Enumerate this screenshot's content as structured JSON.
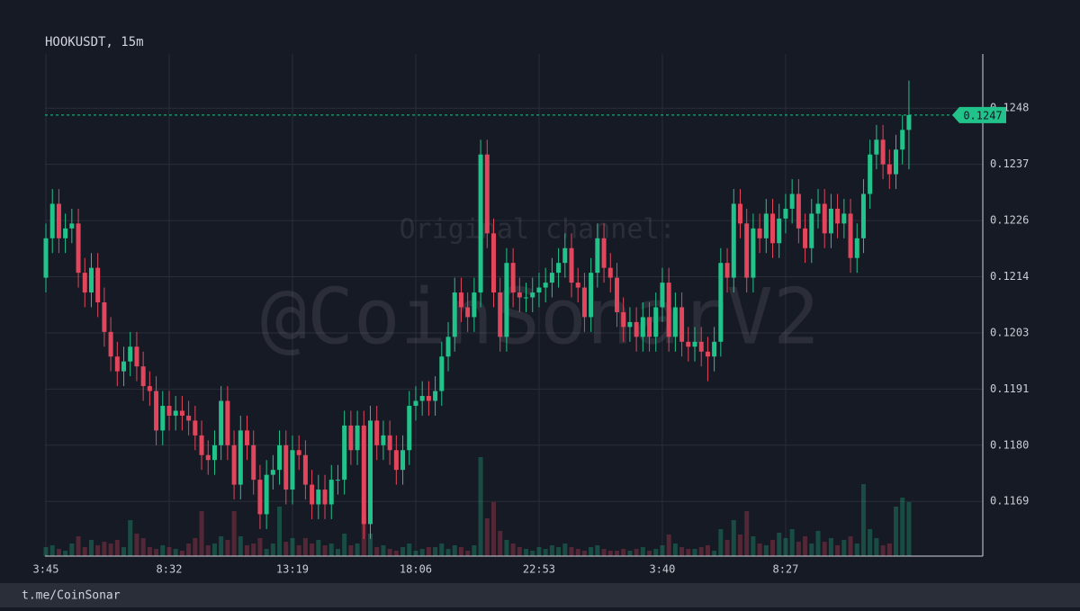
{
  "chart_data": {
    "type": "candlestick",
    "title": "HOOKUSDT, 15m",
    "categories": [
      "3:45",
      null,
      null,
      null,
      null,
      null,
      null,
      null,
      null,
      null,
      null,
      null,
      null,
      null,
      null,
      null,
      null,
      null,
      null,
      "8:32",
      null,
      null,
      null,
      null,
      null,
      null,
      null,
      null,
      null,
      null,
      null,
      null,
      null,
      null,
      null,
      null,
      null,
      null,
      "13:19",
      null,
      null,
      null,
      null,
      null,
      null,
      null,
      null,
      null,
      null,
      null,
      null,
      null,
      null,
      null,
      null,
      null,
      null,
      "18:06",
      null,
      null,
      null,
      null,
      null,
      null,
      null,
      null,
      null,
      null,
      null,
      null,
      null,
      null,
      null,
      null,
      null,
      null,
      "22:53",
      null,
      null,
      null,
      null,
      null,
      null,
      null,
      null,
      null,
      null,
      null,
      null,
      null,
      null,
      null,
      null,
      null,
      null,
      "3:40",
      null,
      null,
      null,
      null,
      null,
      null,
      null,
      null,
      null,
      null,
      null,
      null,
      null,
      null,
      null,
      null,
      null,
      null,
      "8:27",
      null,
      null,
      null,
      null,
      null,
      null,
      null,
      null,
      null,
      null,
      null,
      null,
      null,
      null,
      null,
      null,
      null,
      null,
      null
    ],
    "open": [
      0.1214,
      0.1222,
      0.1229,
      0.1222,
      0.1224,
      0.1225,
      0.1215,
      0.1211,
      0.1216,
      0.1209,
      0.1203,
      0.1198,
      0.1195,
      0.1197,
      0.12,
      0.1196,
      0.1192,
      0.1191,
      0.1183,
      0.1188,
      0.1186,
      0.1187,
      0.1186,
      0.1185,
      0.1182,
      0.1178,
      0.1177,
      0.118,
      0.1189,
      0.118,
      0.1172,
      0.1183,
      0.118,
      0.1173,
      0.1166,
      0.1174,
      0.1175,
      0.118,
      0.1171,
      0.1179,
      0.1178,
      0.1172,
      0.1168,
      0.1171,
      0.1168,
      0.1173,
      0.1173,
      0.1184,
      0.1179,
      0.1184,
      0.1164,
      0.1185,
      0.118,
      0.1182,
      0.1179,
      0.1175,
      0.1179,
      0.1188,
      0.1189,
      0.119,
      0.1189,
      0.1191,
      0.1198,
      0.1202,
      0.1211,
      0.1208,
      0.1206,
      0.1211,
      0.1239,
      0.1223,
      0.1211,
      0.1202,
      0.1217,
      0.1211,
      0.121,
      0.121,
      0.1211,
      0.1212,
      0.1213,
      0.1215,
      0.1217,
      0.122,
      0.1213,
      0.1212,
      0.1206,
      0.1215,
      0.1222,
      0.1216,
      0.1214,
      0.1207,
      0.1204,
      0.1205,
      0.1202,
      0.1206,
      0.1202,
      0.1208,
      0.1213,
      0.1202,
      0.1208,
      0.1201,
      0.12,
      0.1201,
      0.1199,
      0.1198,
      0.1201,
      0.1217,
      0.1214,
      0.1229,
      0.1225,
      0.1214,
      0.1224,
      0.1222,
      0.1227,
      0.1221,
      0.1226,
      0.1228,
      0.1231,
      0.1224,
      0.122,
      0.1227,
      0.1229,
      0.1223,
      0.1228,
      0.1225,
      0.1227,
      0.1218,
      0.1222,
      0.1231,
      0.1239,
      0.1242,
      0.1237,
      0.1235,
      0.124,
      0.1244
    ],
    "high": [
      0.1225,
      0.1232,
      0.1232,
      0.1227,
      0.1228,
      0.1228,
      0.1218,
      0.1219,
      0.1219,
      0.1212,
      0.1206,
      0.1201,
      0.12,
      0.1203,
      0.1203,
      0.1199,
      0.1195,
      0.1194,
      0.1191,
      0.1191,
      0.119,
      0.119,
      0.1189,
      0.1188,
      0.1185,
      0.1181,
      0.1183,
      0.1192,
      0.1192,
      0.1183,
      0.1186,
      0.1186,
      0.1183,
      0.1176,
      0.1177,
      0.1178,
      0.1183,
      0.1183,
      0.1182,
      0.1182,
      0.1181,
      0.1175,
      0.1174,
      0.1174,
      0.1176,
      0.1176,
      0.1187,
      0.1187,
      0.1187,
      0.1187,
      0.1188,
      0.1188,
      0.1185,
      0.1185,
      0.1182,
      0.1182,
      0.1191,
      0.1192,
      0.1193,
      0.1193,
      0.1194,
      0.1201,
      0.1205,
      0.1214,
      0.1214,
      0.1211,
      0.1214,
      0.1242,
      0.1242,
      0.1226,
      0.1214,
      0.122,
      0.122,
      0.1214,
      0.1213,
      0.1214,
      0.1215,
      0.1216,
      0.1218,
      0.122,
      0.1223,
      0.1223,
      0.1216,
      0.1215,
      0.1218,
      0.1225,
      0.1225,
      0.1219,
      0.1217,
      0.121,
      0.1208,
      0.1208,
      0.1209,
      0.1209,
      0.1211,
      0.1216,
      0.1216,
      0.1211,
      0.1211,
      0.1204,
      0.1204,
      0.1204,
      0.1202,
      0.1204,
      0.122,
      0.122,
      0.1232,
      0.1232,
      0.1228,
      0.1227,
      0.1227,
      0.123,
      0.123,
      0.1229,
      0.1231,
      0.1234,
      0.1234,
      0.1227,
      0.123,
      0.1232,
      0.1232,
      0.1231,
      0.1231,
      0.123,
      0.123,
      0.1225,
      0.1234,
      0.1242,
      0.1245,
      0.1245,
      0.124,
      0.1243,
      0.1247,
      0.1254
    ],
    "low": [
      0.1211,
      0.1219,
      0.1219,
      0.1219,
      0.1221,
      0.1212,
      0.1208,
      0.1208,
      0.1206,
      0.12,
      0.1195,
      0.1192,
      0.1192,
      0.1194,
      0.1193,
      0.1189,
      0.1188,
      0.118,
      0.118,
      0.1183,
      0.1183,
      0.1183,
      0.1182,
      0.1179,
      0.1175,
      0.1174,
      0.1174,
      0.1177,
      0.1177,
      0.1169,
      0.1169,
      0.1177,
      0.117,
      0.1163,
      0.1163,
      0.1171,
      0.1172,
      0.1168,
      0.1168,
      0.1175,
      0.1169,
      0.1165,
      0.1165,
      0.1165,
      0.1165,
      0.117,
      0.117,
      0.1176,
      0.1176,
      0.1161,
      0.1161,
      0.1177,
      0.1177,
      0.1176,
      0.1172,
      0.1172,
      0.1176,
      0.1185,
      0.1186,
      0.1186,
      0.1186,
      0.1188,
      0.1195,
      0.1199,
      0.1205,
      0.1203,
      0.1203,
      0.1208,
      0.122,
      0.1208,
      0.1199,
      0.1199,
      0.1208,
      0.1207,
      0.1207,
      0.1207,
      0.1208,
      0.1209,
      0.121,
      0.1212,
      0.1214,
      0.121,
      0.1209,
      0.1203,
      0.1203,
      0.1212,
      0.1213,
      0.1211,
      0.1204,
      0.1201,
      0.1201,
      0.1199,
      0.1199,
      0.1199,
      0.1199,
      0.1205,
      0.1199,
      0.1199,
      0.1198,
      0.1197,
      0.1197,
      0.1196,
      0.1193,
      0.1195,
      0.1198,
      0.1211,
      0.1211,
      0.1222,
      0.1211,
      0.1211,
      0.1219,
      0.1219,
      0.1218,
      0.1218,
      0.1223,
      0.1225,
      0.1221,
      0.1217,
      0.1217,
      0.1224,
      0.122,
      0.122,
      0.1222,
      0.1222,
      0.1215,
      0.1215,
      0.1219,
      0.1228,
      0.1236,
      0.1234,
      0.1232,
      0.1232,
      0.1237,
      0.1236
    ],
    "close": [
      0.1222,
      0.1229,
      0.1222,
      0.1224,
      0.1225,
      0.1215,
      0.1211,
      0.1216,
      0.1209,
      0.1203,
      0.1198,
      0.1195,
      0.1197,
      0.12,
      0.1196,
      0.1192,
      0.1191,
      0.1183,
      0.1188,
      0.1186,
      0.1187,
      0.1186,
      0.1185,
      0.1182,
      0.1178,
      0.1177,
      0.118,
      0.1189,
      0.118,
      0.1172,
      0.1183,
      0.118,
      0.1173,
      0.1166,
      0.1174,
      0.1175,
      0.118,
      0.1171,
      0.1179,
      0.1178,
      0.1172,
      0.1168,
      0.1171,
      0.1168,
      0.1173,
      0.1173,
      0.1184,
      0.1179,
      0.1184,
      0.1164,
      0.1185,
      0.118,
      0.1182,
      0.1179,
      0.1175,
      0.1179,
      0.1188,
      0.1189,
      0.119,
      0.1189,
      0.1191,
      0.1198,
      0.1202,
      0.1211,
      0.1208,
      0.1206,
      0.1211,
      0.1239,
      0.1223,
      0.1211,
      0.1202,
      0.1217,
      0.1211,
      0.121,
      0.121,
      0.1211,
      0.1212,
      0.1213,
      0.1215,
      0.1217,
      0.122,
      0.1213,
      0.1212,
      0.1206,
      0.1215,
      0.1222,
      0.1216,
      0.1214,
      0.1207,
      0.1204,
      0.1205,
      0.1202,
      0.1206,
      0.1202,
      0.1208,
      0.1213,
      0.1202,
      0.1208,
      0.1201,
      0.12,
      0.1201,
      0.1199,
      0.1198,
      0.1201,
      0.1217,
      0.1214,
      0.1229,
      0.1225,
      0.1214,
      0.1224,
      0.1222,
      0.1227,
      0.1221,
      0.1226,
      0.1228,
      0.1231,
      0.1224,
      0.122,
      0.1227,
      0.1229,
      0.1223,
      0.1228,
      0.1225,
      0.1227,
      0.1218,
      0.1222,
      0.1231,
      0.1239,
      0.1242,
      0.1237,
      0.1235,
      0.124,
      0.1244,
      0.1247
    ],
    "volume": [
      10,
      12,
      8,
      6,
      14,
      22,
      10,
      18,
      12,
      16,
      14,
      18,
      10,
      40,
      25,
      20,
      10,
      8,
      12,
      10,
      8,
      6,
      14,
      20,
      50,
      12,
      14,
      22,
      18,
      50,
      22,
      12,
      14,
      20,
      8,
      14,
      55,
      16,
      20,
      12,
      20,
      14,
      18,
      12,
      14,
      8,
      25,
      12,
      14,
      45,
      25,
      10,
      12,
      8,
      6,
      10,
      14,
      6,
      8,
      10,
      10,
      14,
      8,
      12,
      10,
      6,
      12,
      110,
      42,
      60,
      28,
      18,
      14,
      10,
      8,
      6,
      10,
      8,
      12,
      10,
      14,
      10,
      8,
      6,
      10,
      12,
      8,
      6,
      6,
      8,
      6,
      8,
      10,
      6,
      8,
      12,
      24,
      14,
      10,
      8,
      8,
      10,
      12,
      6,
      30,
      18,
      40,
      24,
      50,
      22,
      14,
      12,
      18,
      26,
      20,
      30,
      16,
      22,
      14,
      28,
      16,
      20,
      12,
      18,
      22,
      14,
      80,
      30,
      20,
      12,
      14,
      55,
      65,
      60
    ],
    "ylim": [
      0.11575,
      0.12594
    ],
    "yticks": [
      {
        "value": 0.11686,
        "label": "0.1169"
      },
      {
        "value": 0.118,
        "label": "0.1180"
      },
      {
        "value": 0.11914,
        "label": "0.1191"
      },
      {
        "value": 0.12028,
        "label": "0.1203"
      },
      {
        "value": 0.12142,
        "label": "0.1214"
      },
      {
        "value": 0.12256,
        "label": "0.1226"
      },
      {
        "value": 0.1237,
        "label": "0.1237"
      },
      {
        "value": 0.12484,
        "label": "0.1248"
      }
    ],
    "grid": true,
    "up_color": "#22c38a",
    "down_color": "#e2465c"
  },
  "watermark": {
    "line1": "Original channel:",
    "line2": "@CoinSonarV2"
  },
  "footer": "t.me/CoinSonar"
}
